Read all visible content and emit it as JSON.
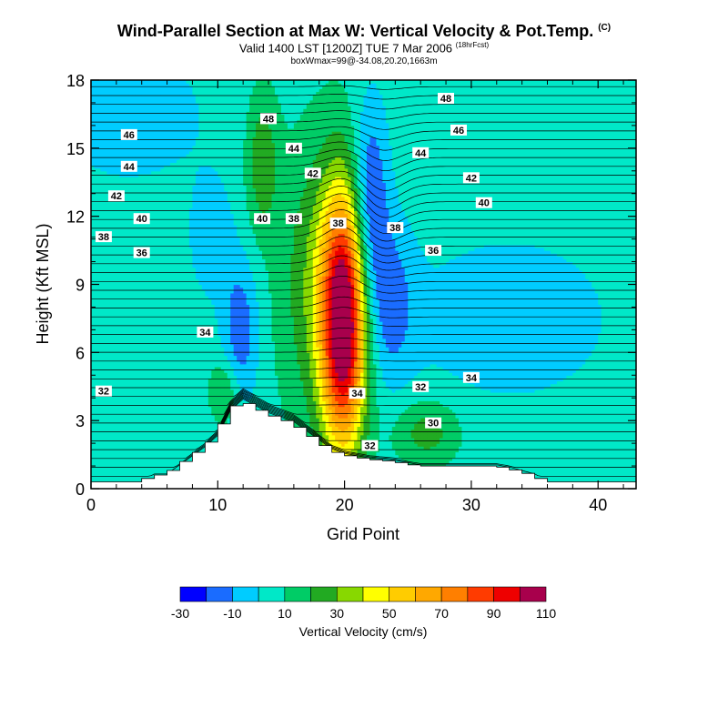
{
  "title": "Wind-Parallel Section at Max W: Vertical Velocity & Pot.Temp.",
  "title_mark": "(C)",
  "subtitle": "Valid 1400 LST [1200Z] TUE 7 Mar 2006",
  "subtitle_mark": "(18hrFcst)",
  "subtitle2": "boxWmax=99@-34.08,20.20,1663m",
  "chart_data": {
    "type": "heatmap",
    "xlabel": "Grid Point",
    "ylabel": "Height (Kft MSL)",
    "xlim": [
      0,
      43
    ],
    "ylim": [
      0,
      18
    ],
    "xticks": [
      0,
      10,
      20,
      30,
      40
    ],
    "yticks": [
      0,
      3,
      6,
      9,
      12,
      15,
      18
    ],
    "colorbar": {
      "label": "Vertical Velocity (cm/s)",
      "tick_labels": [
        "-30",
        "-10",
        "10",
        "30",
        "50",
        "70",
        "90",
        "110"
      ],
      "levels": [
        -30,
        -20,
        -10,
        0,
        10,
        20,
        30,
        40,
        50,
        60,
        70,
        80,
        90,
        100,
        110
      ],
      "colors": [
        "#0000ff",
        "#1a6cff",
        "#00ccff",
        "#00e8c8",
        "#00cc66",
        "#22aa22",
        "#88d800",
        "#ffff00",
        "#ffcc00",
        "#ffa800",
        "#ff7f00",
        "#ff3b00",
        "#ee0000",
        "#a8004c"
      ]
    },
    "background_value_cm_s": 5,
    "terrain": [
      [
        0,
        0.3
      ],
      [
        4,
        0.3
      ],
      [
        5,
        0.6
      ],
      [
        6,
        0.6
      ],
      [
        7,
        1
      ],
      [
        8,
        1.4
      ],
      [
        9,
        1.8
      ],
      [
        10,
        2.3
      ],
      [
        11,
        3.4
      ],
      [
        12,
        3.9
      ],
      [
        13,
        3.6
      ],
      [
        14,
        3.3
      ],
      [
        15,
        3.1
      ],
      [
        16,
        2.9
      ],
      [
        17,
        2.5
      ],
      [
        18,
        2.1
      ],
      [
        19,
        1.7
      ],
      [
        20,
        1.5
      ],
      [
        21,
        1.4
      ],
      [
        22,
        1.3
      ],
      [
        24,
        1.2
      ],
      [
        25,
        1.1
      ],
      [
        26,
        1
      ],
      [
        32,
        1
      ],
      [
        33,
        0.9
      ],
      [
        35,
        0.6
      ],
      [
        36,
        0.3
      ],
      [
        43,
        0.3
      ]
    ],
    "updrafts": [
      {
        "x": 19.9,
        "y": 7.2,
        "sx": 1.2,
        "sy": 3.8,
        "peak_cm_s": 99
      },
      {
        "x": 18.6,
        "y": 9,
        "sx": 2.5,
        "sy": 4.5,
        "peak_cm_s": 28
      },
      {
        "x": 13.5,
        "y": 14.5,
        "sx": 0.9,
        "sy": 2.2,
        "peak_cm_s": 22
      },
      {
        "x": 26.5,
        "y": 2.5,
        "sx": 1.8,
        "sy": 1,
        "peak_cm_s": 20
      },
      {
        "x": 10.5,
        "y": 4.3,
        "sx": 0.8,
        "sy": 1,
        "peak_cm_s": 18
      }
    ],
    "downdrafts": [
      {
        "x": 22,
        "y": 12.6,
        "sx": 1,
        "sy": 3,
        "peak_cm_s": -32
      },
      {
        "x": 23.5,
        "y": 8.2,
        "sx": 1.4,
        "sy": 2.6,
        "peak_cm_s": -22
      },
      {
        "x": 11.8,
        "y": 7,
        "sx": 1,
        "sy": 2.2,
        "peak_cm_s": -22
      },
      {
        "x": 9.5,
        "y": 11,
        "sx": 1.2,
        "sy": 1.8,
        "peak_cm_s": -12
      },
      {
        "x": 3,
        "y": 16.5,
        "sx": 5,
        "sy": 2.5,
        "peak_cm_s": -9
      },
      {
        "x": 33,
        "y": 7.5,
        "sx": 5.5,
        "sy": 2.5,
        "peak_cm_s": -12
      }
    ],
    "theta_contour_labels": [
      {
        "text": "48",
        "x": 14,
        "y": 16.3
      },
      {
        "text": "48",
        "x": 28,
        "y": 17.2
      },
      {
        "text": "46",
        "x": 3,
        "y": 15.6
      },
      {
        "text": "46",
        "x": 29,
        "y": 15.8
      },
      {
        "text": "44",
        "x": 3,
        "y": 14.2
      },
      {
        "text": "44",
        "x": 16,
        "y": 15
      },
      {
        "text": "44",
        "x": 26,
        "y": 14.8
      },
      {
        "text": "42",
        "x": 2,
        "y": 12.9
      },
      {
        "text": "42",
        "x": 17.5,
        "y": 13.9
      },
      {
        "text": "42",
        "x": 30,
        "y": 13.7
      },
      {
        "text": "40",
        "x": 4,
        "y": 11.9
      },
      {
        "text": "40",
        "x": 13.5,
        "y": 11.9
      },
      {
        "text": "40",
        "x": 31,
        "y": 12.6
      },
      {
        "text": "38",
        "x": 1,
        "y": 11.1
      },
      {
        "text": "38",
        "x": 16,
        "y": 11.9
      },
      {
        "text": "38",
        "x": 19.5,
        "y": 11.7
      },
      {
        "text": "38",
        "x": 24,
        "y": 11.5
      },
      {
        "text": "36",
        "x": 4,
        "y": 10.4
      },
      {
        "text": "36",
        "x": 27,
        "y": 10.5
      },
      {
        "text": "34",
        "x": 9,
        "y": 6.9
      },
      {
        "text": "34",
        "x": 21,
        "y": 4.2
      },
      {
        "text": "34",
        "x": 30,
        "y": 4.9
      },
      {
        "text": "32",
        "x": 1,
        "y": 4.3
      },
      {
        "text": "32",
        "x": 26,
        "y": 4.5
      },
      {
        "text": "32",
        "x": 22,
        "y": 1.9
      },
      {
        "text": "30",
        "x": 27,
        "y": 2.9
      }
    ]
  }
}
